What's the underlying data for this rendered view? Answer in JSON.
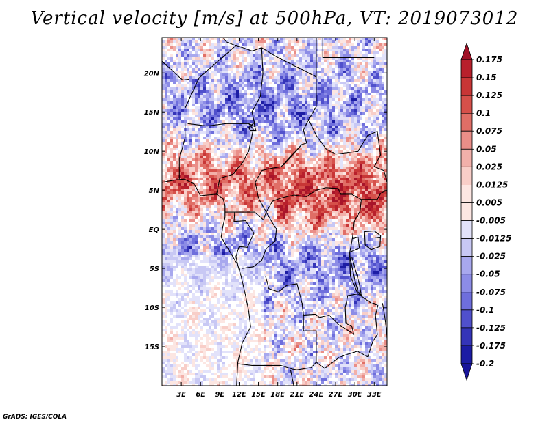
{
  "title": "Vertical velocity [m/s] at 500hPa, VT: 2019073012",
  "footer": "GrADS: IGES/COLA",
  "map": {
    "lon_range": [
      0,
      35
    ],
    "lat_range": [
      -20,
      24.5
    ],
    "lat_ticks": [
      {
        "value": 20,
        "label": "20N"
      },
      {
        "value": 15,
        "label": "15N"
      },
      {
        "value": 10,
        "label": "10N"
      },
      {
        "value": 5,
        "label": "5N"
      },
      {
        "value": 0,
        "label": "EQ"
      },
      {
        "value": -5,
        "label": "5S"
      },
      {
        "value": -10,
        "label": "10S"
      },
      {
        "value": -15,
        "label": "15S"
      }
    ],
    "lon_ticks": [
      {
        "value": 3,
        "label": "3E"
      },
      {
        "value": 6,
        "label": "6E"
      },
      {
        "value": 9,
        "label": "9E"
      },
      {
        "value": 12,
        "label": "12E"
      },
      {
        "value": 15,
        "label": "15E"
      },
      {
        "value": 18,
        "label": "18E"
      },
      {
        "value": 21,
        "label": "21E"
      },
      {
        "value": 24,
        "label": "24E"
      },
      {
        "value": 27,
        "label": "27E"
      },
      {
        "value": 30,
        "label": "30E"
      },
      {
        "value": 33,
        "label": "33E"
      }
    ]
  },
  "colorbar": {
    "levels": [
      {
        "label": "0.175",
        "color": "#a8142a"
      },
      {
        "label": "0.15",
        "color": "#b8202c"
      },
      {
        "label": "0.125",
        "color": "#c83636"
      },
      {
        "label": "0.1",
        "color": "#d6504a"
      },
      {
        "label": "0.075",
        "color": "#e06e66"
      },
      {
        "label": "0.05",
        "color": "#ea8e88"
      },
      {
        "label": "0.025",
        "color": "#f2b0aa"
      },
      {
        "label": "0.0125",
        "color": "#f8cec8"
      },
      {
        "label": "0.005",
        "color": "#fce6e2"
      },
      {
        "label": "-0.005",
        "color": "#ffffff"
      },
      {
        "label": "-0.0125",
        "color": "#e2e2fa"
      },
      {
        "label": "-0.025",
        "color": "#c8c8f4"
      },
      {
        "label": "-0.05",
        "color": "#a8a8ee"
      },
      {
        "label": "-0.075",
        "color": "#8c8ce6"
      },
      {
        "label": "-0.1",
        "color": "#6e6edc"
      },
      {
        "label": "-0.125",
        "color": "#5050cc"
      },
      {
        "label": "-0.175",
        "color": "#3434b8"
      },
      {
        "label": "-0.2",
        "color": "#1c1ca4"
      }
    ],
    "top_color": "#a01026",
    "bottom_color": "#18149a"
  }
}
